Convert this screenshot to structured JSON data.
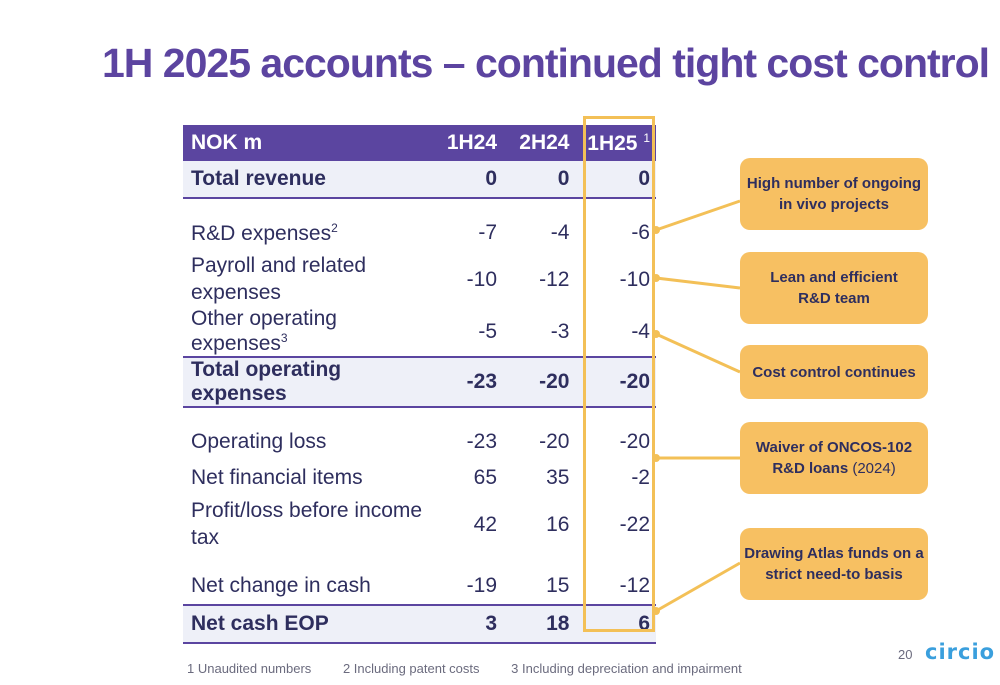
{
  "title": "1H 2025 accounts – continued tight cost control",
  "table": {
    "header": {
      "label": "NOK m",
      "c1": "1H24",
      "c2": "2H24",
      "c3": "1H25",
      "c3_note": "1"
    },
    "rows": {
      "total_revenue": {
        "label": "Total revenue",
        "c1": "0",
        "c2": "0",
        "c3": "0"
      },
      "rd_expenses": {
        "label": "R&D expenses",
        "note": "2",
        "c1": "-7",
        "c2": "-4",
        "c3": "-6"
      },
      "payroll": {
        "label": "Payroll and related expenses",
        "c1": "-10",
        "c2": "-12",
        "c3": "-10"
      },
      "other_opex": {
        "label": "Other operating expenses",
        "note": "3",
        "c1": "-5",
        "c2": "-3",
        "c3": "-4"
      },
      "total_opex": {
        "label": "Total operating expenses",
        "c1": "-23",
        "c2": "-20",
        "c3": "-20"
      },
      "operating_loss": {
        "label": "Operating loss",
        "c1": "-23",
        "c2": "-20",
        "c3": "-20"
      },
      "net_financial": {
        "label": "Net financial items",
        "c1": "65",
        "c2": "35",
        "c3": "-2"
      },
      "profit_before_tax": {
        "label": "Profit/loss before income tax",
        "c1": "42",
        "c2": "16",
        "c3": "-22"
      },
      "net_change_cash": {
        "label": "Net change in cash",
        "c1": "-19",
        "c2": "15",
        "c3": "-12"
      },
      "net_cash_eop": {
        "label": "Net cash EOP",
        "c1": "3",
        "c2": "18",
        "c3": "6"
      }
    }
  },
  "callouts": {
    "c1": {
      "line1": "High number of ongoing",
      "line2": "in vivo projects"
    },
    "c2": {
      "line1": "Lean and efficient",
      "line2": "R&D team"
    },
    "c3": {
      "line1": "Cost control continues"
    },
    "c4": {
      "line1": "Waiver of ONCOS-102",
      "line2a": "R&D loans",
      "line2b": "(2024)"
    },
    "c5": {
      "line1": "Drawing Atlas funds on a",
      "line2": "strict need-to basis"
    }
  },
  "footnotes": {
    "f1": "1 Unaudited numbers",
    "f2": "2 Including patent costs",
    "f3": "3 Including depreciation and impairment"
  },
  "page_number": "20",
  "logo_text": "circio",
  "colors": {
    "purple": "#5b45a0",
    "accent": "#f7c062",
    "logo": "#3a9fdd"
  }
}
